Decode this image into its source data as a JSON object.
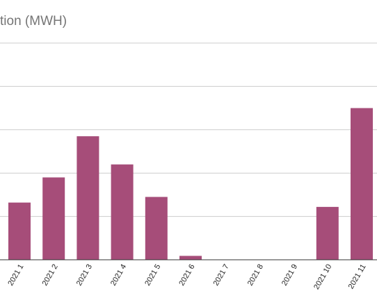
{
  "chart_data": {
    "type": "bar",
    "title": "tion (MWH)",
    "categories": [
      "2021 1",
      "2021 2",
      "2021 3",
      "2021 4",
      "2021 5",
      "2021 6",
      "2021 7",
      "2021 8",
      "2021 9",
      "2021 10",
      "2021 11"
    ],
    "series": [
      {
        "values": [
          13.2,
          19.0,
          28.5,
          22.0,
          14.5,
          0.9,
          0,
          0,
          0,
          12.2,
          35.0
        ]
      }
    ],
    "ylim": [
      0,
      50
    ],
    "grid": true,
    "bar_color": "#a64d79",
    "gridline_color": "#cccccc",
    "axis_color": "#333333",
    "title_color": "#757575"
  }
}
